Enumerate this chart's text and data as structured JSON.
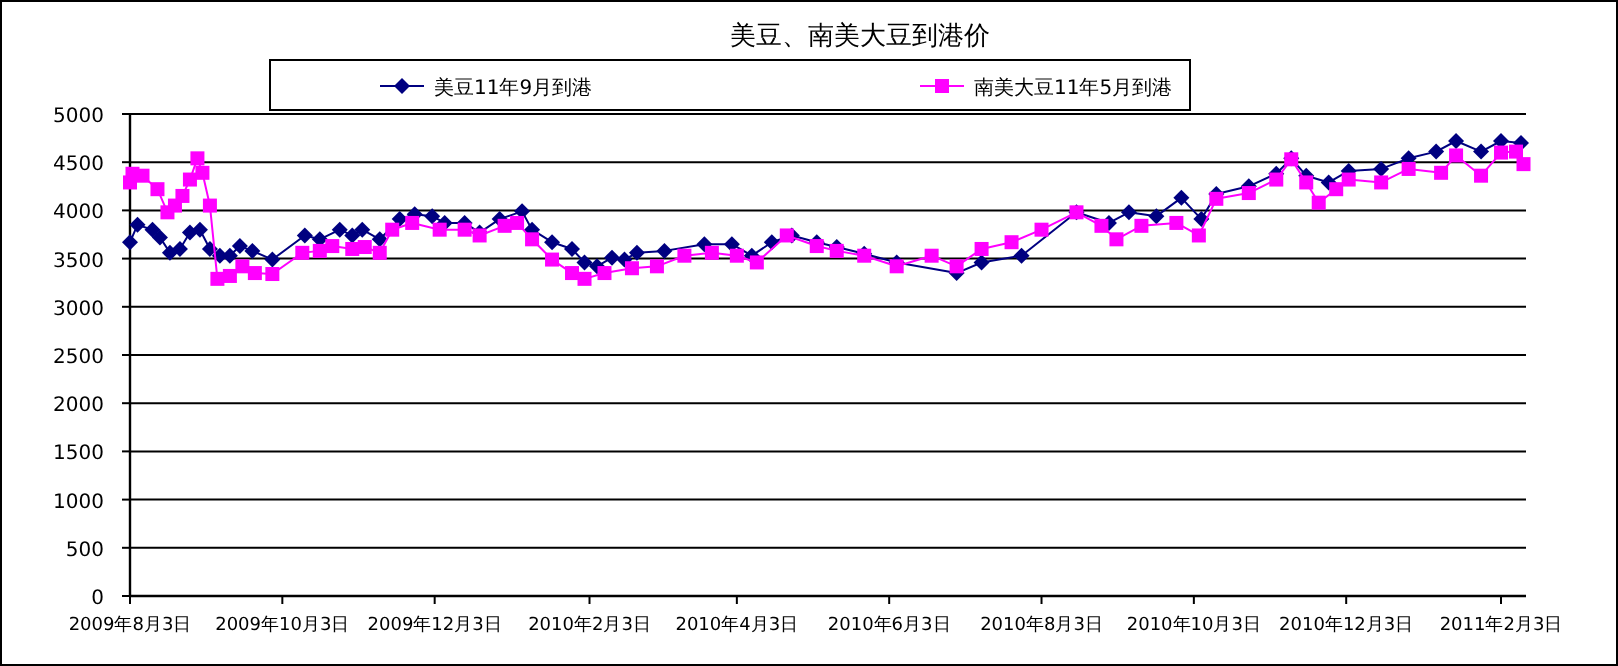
{
  "chart_data": {
    "type": "line",
    "title": "美豆、南美大豆到港价",
    "xlim": [
      "2009-08-03",
      "2011-02-13"
    ],
    "ylim": [
      0,
      5000
    ],
    "yticks": [
      0,
      500,
      1000,
      1500,
      2000,
      2500,
      3000,
      3500,
      4000,
      4500,
      5000
    ],
    "xticks": [
      {
        "value": "2009-08-03",
        "label": "2009年8月3日"
      },
      {
        "value": "2009-10-03",
        "label": "2009年10月3日"
      },
      {
        "value": "2009-12-03",
        "label": "2009年12月3日"
      },
      {
        "value": "2010-02-03",
        "label": "2010年2月3日"
      },
      {
        "value": "2010-04-03",
        "label": "2010年4月3日"
      },
      {
        "value": "2010-06-03",
        "label": "2010年6月3日"
      },
      {
        "value": "2010-08-03",
        "label": "2010年8月3日"
      },
      {
        "value": "2010-10-03",
        "label": "2010年10月3日"
      },
      {
        "value": "2010-12-03",
        "label": "2010年12月3日"
      },
      {
        "value": "2011-02-03",
        "label": "2011年2月3日"
      }
    ],
    "grid": "y",
    "legend": "top",
    "series": [
      {
        "name": "美豆11年9月到港",
        "color": "#000080",
        "marker": "diamond",
        "x": [
          "2009-08-03",
          "2009-08-06",
          "2009-08-12",
          "2009-08-15",
          "2009-08-19",
          "2009-08-23",
          "2009-08-27",
          "2009-08-31",
          "2009-09-04",
          "2009-09-08",
          "2009-09-12",
          "2009-09-16",
          "2009-09-21",
          "2009-09-29",
          "2009-10-12",
          "2009-10-18",
          "2009-10-26",
          "2009-10-31",
          "2009-11-04",
          "2009-11-11",
          "2009-11-19",
          "2009-11-25",
          "2009-12-02",
          "2009-12-07",
          "2009-12-15",
          "2009-12-21",
          "2009-12-29",
          "2010-01-07",
          "2010-01-11",
          "2010-01-19",
          "2010-01-27",
          "2010-02-01",
          "2010-02-06",
          "2010-02-12",
          "2010-02-17",
          "2010-02-22",
          "2010-03-05",
          "2010-03-21",
          "2010-04-01",
          "2010-04-09",
          "2010-04-17",
          "2010-04-25",
          "2010-05-05",
          "2010-05-13",
          "2010-05-24",
          "2010-06-06",
          "2010-06-30",
          "2010-07-10",
          "2010-07-26",
          "2010-08-17",
          "2010-08-30",
          "2010-09-07",
          "2010-09-18",
          "2010-09-28",
          "2010-10-06",
          "2010-10-12",
          "2010-10-25",
          "2010-11-05",
          "2010-11-11",
          "2010-11-17",
          "2010-11-26",
          "2010-12-04",
          "2010-12-17",
          "2010-12-28",
          "2011-01-08",
          "2011-01-16",
          "2011-01-26",
          "2011-02-03",
          "2011-02-11"
        ],
        "values": [
          3670,
          3850,
          3800,
          3720,
          3560,
          3600,
          3770,
          3800,
          3600,
          3530,
          3530,
          3630,
          3580,
          3490,
          3740,
          3700,
          3800,
          3740,
          3800,
          3700,
          3910,
          3960,
          3940,
          3870,
          3870,
          3770,
          3910,
          3990,
          3800,
          3670,
          3600,
          3460,
          3420,
          3510,
          3490,
          3560,
          3580,
          3650,
          3650,
          3530,
          3670,
          3740,
          3670,
          3620,
          3550,
          3460,
          3350,
          3460,
          3530,
          3980,
          3870,
          3980,
          3940,
          4130,
          3910,
          4170,
          4250,
          4380,
          4540,
          4360,
          4290,
          4410,
          4430,
          4540,
          4610,
          4720,
          4610,
          4720,
          4700
        ]
      },
      {
        "name": "南美大豆11年5月到港",
        "color": "#ff00ff",
        "marker": "square",
        "x": [
          "2009-08-03",
          "2009-08-04",
          "2009-08-08",
          "2009-08-14",
          "2009-08-18",
          "2009-08-21",
          "2009-08-24",
          "2009-08-27",
          "2009-08-30",
          "2009-09-01",
          "2009-09-04",
          "2009-09-07",
          "2009-09-12",
          "2009-09-17",
          "2009-09-22",
          "2009-09-29",
          "2009-10-11",
          "2009-10-18",
          "2009-10-23",
          "2009-10-31",
          "2009-11-05",
          "2009-11-11",
          "2009-11-16",
          "2009-11-24",
          "2009-12-05",
          "2009-12-15",
          "2009-12-21",
          "2009-12-31",
          "2010-01-05",
          "2010-01-11",
          "2010-01-19",
          "2010-01-27",
          "2010-02-01",
          "2010-02-09",
          "2010-02-20",
          "2010-03-02",
          "2010-03-13",
          "2010-03-24",
          "2010-04-03",
          "2010-04-11",
          "2010-04-23",
          "2010-05-05",
          "2010-05-13",
          "2010-05-24",
          "2010-06-06",
          "2010-06-20",
          "2010-06-30",
          "2010-07-10",
          "2010-07-22",
          "2010-08-03",
          "2010-08-17",
          "2010-08-27",
          "2010-09-02",
          "2010-09-12",
          "2010-09-26",
          "2010-10-05",
          "2010-10-12",
          "2010-10-25",
          "2010-11-05",
          "2010-11-11",
          "2010-11-17",
          "2010-11-22",
          "2010-11-29",
          "2010-12-04",
          "2010-12-17",
          "2010-12-28",
          "2011-01-10",
          "2011-01-16",
          "2011-01-26",
          "2011-02-03",
          "2011-02-09",
          "2011-02-12"
        ],
        "values": [
          4290,
          4380,
          4360,
          4220,
          3980,
          4050,
          4150,
          4320,
          4540,
          4390,
          4050,
          3290,
          3320,
          3420,
          3350,
          3340,
          3560,
          3580,
          3630,
          3600,
          3620,
          3560,
          3800,
          3870,
          3800,
          3800,
          3740,
          3840,
          3870,
          3700,
          3490,
          3350,
          3290,
          3350,
          3400,
          3420,
          3530,
          3560,
          3530,
          3460,
          3740,
          3630,
          3580,
          3530,
          3420,
          3530,
          3420,
          3600,
          3670,
          3800,
          3980,
          3840,
          3700,
          3840,
          3870,
          3740,
          4120,
          4180,
          4320,
          4530,
          4290,
          4080,
          4220,
          4320,
          4290,
          4430,
          4390,
          4570,
          4360,
          4600,
          4610,
          4480
        ]
      }
    ]
  }
}
